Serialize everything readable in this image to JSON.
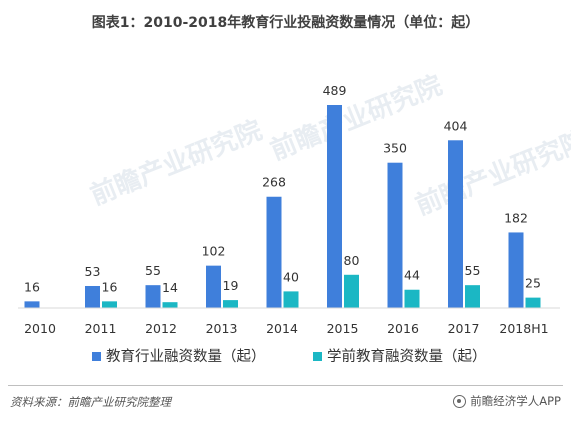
{
  "title": "图表1：2010-2018年教育行业投融资数量情况（单位：起）",
  "source": "资料来源：前瞻产业研究院整理",
  "brand": "前瞻经济学人APP",
  "watermark": "前瞻产业研究院",
  "chart_data": {
    "type": "bar",
    "title": "图表1：2010-2018年教育行业投融资数量情况（单位：起）",
    "categories": [
      "2010",
      "2011",
      "2012",
      "2013",
      "2014",
      "2015",
      "2016",
      "2017",
      "2018H1"
    ],
    "series": [
      {
        "name": "教育行业融资数量（起）",
        "color": "#3f7fdb",
        "values": [
          16,
          53,
          55,
          102,
          268,
          489,
          350,
          404,
          182
        ]
      },
      {
        "name": "学前教育融资数量（起）",
        "color": "#1bb7c4",
        "values": [
          null,
          16,
          14,
          19,
          40,
          80,
          44,
          55,
          25
        ]
      }
    ],
    "ylim": [
      0,
      500
    ],
    "grid": false,
    "legend": "bottom",
    "xlabel": "",
    "ylabel": ""
  }
}
